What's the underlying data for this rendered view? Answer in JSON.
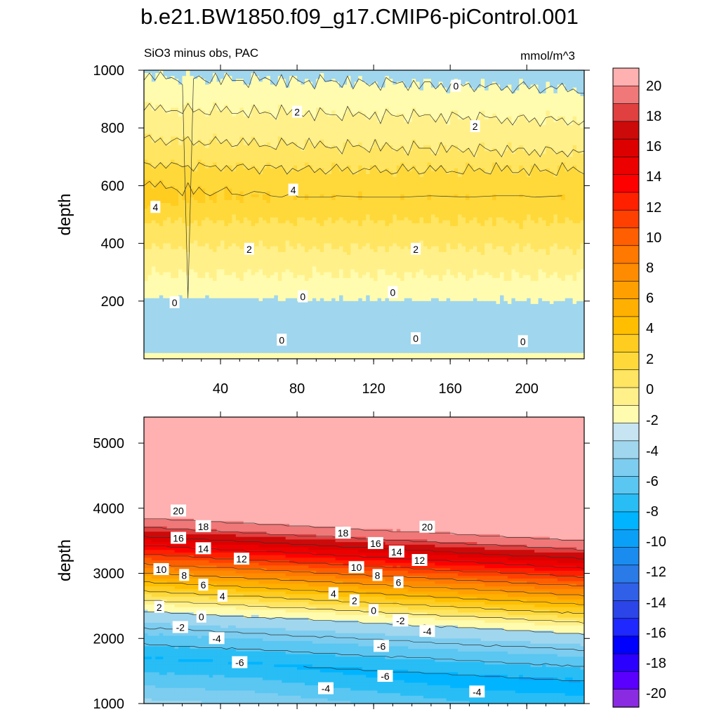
{
  "figure": {
    "title": "b.e21.BW1850.f09_g17.CMIP6-piControl.001",
    "subtitle_left": "SiO3 minus obs, PAC",
    "subtitle_right": "mmol/m^3"
  },
  "colors": {
    "level_colors": [
      "#8a2be2",
      "#5a00ff",
      "#2b00ff",
      "#0000ff",
      "#1e28ff",
      "#2b45e8",
      "#3060e8",
      "#2a7ae8",
      "#1a8cf0",
      "#0aa0f8",
      "#00b4ff",
      "#28bdf5",
      "#5ac6f2",
      "#7ccdf0",
      "#a0d6ee",
      "#c6e4f2",
      "#fffcaf",
      "#fff08a",
      "#ffe561",
      "#ffd93a",
      "#ffcc20",
      "#ffbf00",
      "#ffb000",
      "#ffa000",
      "#ff8c00",
      "#ff7800",
      "#ff5f00",
      "#ff4000",
      "#ff2000",
      "#ff0000",
      "#ec0000",
      "#dc0000",
      "#cc0a0a",
      "#e04040",
      "#f07878",
      "#ffb0b0"
    ]
  },
  "chart_data": [
    {
      "type": "contour",
      "name": "upper-panel",
      "xlabel": "",
      "ylabel": "depth",
      "xlim": [
        0,
        230
      ],
      "ylim": [
        1000,
        0
      ],
      "xticks": [
        40,
        80,
        120,
        160,
        200
      ],
      "yticks": [
        200,
        400,
        600,
        800,
        1000
      ],
      "contour_levels": [
        -2,
        0,
        1,
        2,
        3,
        4
      ],
      "contour_labels": [
        {
          "x": 72,
          "depth": 65,
          "text": "0"
        },
        {
          "x": 142,
          "depth": 70,
          "text": "0"
        },
        {
          "x": 198,
          "depth": 60,
          "text": "0"
        },
        {
          "x": 16,
          "depth": 195,
          "text": "0"
        },
        {
          "x": 83,
          "depth": 215,
          "text": "0"
        },
        {
          "x": 130,
          "depth": 230,
          "text": "0"
        },
        {
          "x": 55,
          "depth": 380,
          "text": "2"
        },
        {
          "x": 142,
          "depth": 380,
          "text": "2"
        },
        {
          "x": 6,
          "depth": 525,
          "text": "4"
        },
        {
          "x": 78,
          "depth": 585,
          "text": "4"
        },
        {
          "x": 173,
          "depth": 805,
          "text": "2"
        },
        {
          "x": 80,
          "depth": 855,
          "text": "2"
        },
        {
          "x": 163,
          "depth": 945,
          "text": "0"
        }
      ]
    },
    {
      "type": "contour",
      "name": "lower-panel",
      "xlabel": "",
      "ylabel": "depth",
      "xlim": [
        0,
        230
      ],
      "ylim": [
        5400,
        1000
      ],
      "xticks": [
        40,
        80,
        120,
        160,
        200
      ],
      "yticks": [
        1000,
        2000,
        3000,
        4000,
        5000
      ],
      "contour_levels": [
        -6,
        -4,
        -2,
        0,
        2,
        4,
        6,
        8,
        10,
        12,
        14,
        16,
        18,
        20
      ],
      "contour_labels": [
        {
          "x": 95,
          "depth": 1230,
          "text": "-4"
        },
        {
          "x": 174,
          "depth": 1180,
          "text": "-4"
        },
        {
          "x": 126,
          "depth": 1420,
          "text": "-6"
        },
        {
          "x": 50,
          "depth": 1630,
          "text": "-6"
        },
        {
          "x": 124,
          "depth": 1880,
          "text": "-6"
        },
        {
          "x": 38,
          "depth": 2000,
          "text": "-4"
        },
        {
          "x": 148,
          "depth": 2110,
          "text": "-4"
        },
        {
          "x": 19,
          "depth": 2170,
          "text": "-2"
        },
        {
          "x": 134,
          "depth": 2270,
          "text": "-2"
        },
        {
          "x": 30,
          "depth": 2330,
          "text": "0"
        },
        {
          "x": 120,
          "depth": 2430,
          "text": "0"
        },
        {
          "x": 8,
          "depth": 2480,
          "text": "2"
        },
        {
          "x": 110,
          "depth": 2580,
          "text": "2"
        },
        {
          "x": 41,
          "depth": 2650,
          "text": "4"
        },
        {
          "x": 99,
          "depth": 2690,
          "text": "4"
        },
        {
          "x": 31,
          "depth": 2820,
          "text": "6"
        },
        {
          "x": 133,
          "depth": 2860,
          "text": "6"
        },
        {
          "x": 21,
          "depth": 2970,
          "text": "8"
        },
        {
          "x": 122,
          "depth": 2970,
          "text": "8"
        },
        {
          "x": 9,
          "depth": 3060,
          "text": "10"
        },
        {
          "x": 111,
          "depth": 3090,
          "text": "10"
        },
        {
          "x": 51,
          "depth": 3220,
          "text": "12"
        },
        {
          "x": 144,
          "depth": 3200,
          "text": "12"
        },
        {
          "x": 31,
          "depth": 3380,
          "text": "14"
        },
        {
          "x": 132,
          "depth": 3330,
          "text": "14"
        },
        {
          "x": 18,
          "depth": 3540,
          "text": "16"
        },
        {
          "x": 121,
          "depth": 3460,
          "text": "16"
        },
        {
          "x": 31,
          "depth": 3720,
          "text": "18"
        },
        {
          "x": 104,
          "depth": 3620,
          "text": "18"
        },
        {
          "x": 18,
          "depth": 3960,
          "text": "20"
        },
        {
          "x": 148,
          "depth": 3710,
          "text": "20"
        }
      ]
    },
    {
      "type": "colorbar",
      "name": "colorbar",
      "levels": [
        -20,
        -18,
        -16,
        -14,
        -12,
        -10,
        -8,
        -6,
        -4,
        -2,
        0,
        2,
        4,
        6,
        8,
        10,
        12,
        14,
        16,
        18,
        20
      ],
      "labels": [
        "20",
        "18",
        "16",
        "14",
        "12",
        "10",
        "8",
        "6",
        "4",
        "2",
        "0",
        "-2",
        "-4",
        "-6",
        "-8",
        "-10",
        "-12",
        "-14",
        "-16",
        "-18",
        "-20"
      ]
    }
  ]
}
